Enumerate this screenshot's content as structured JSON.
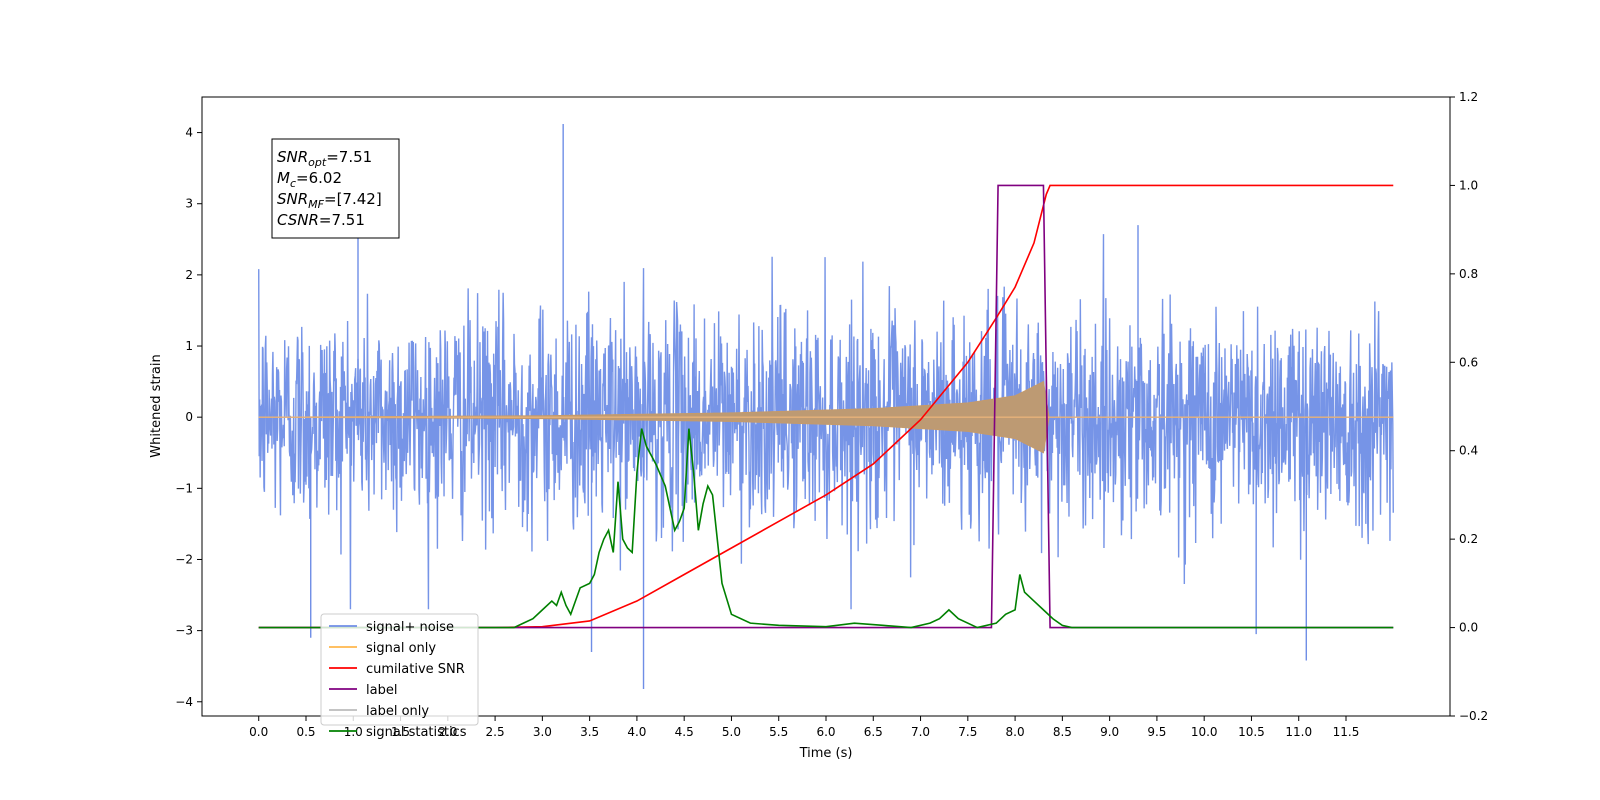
{
  "chart_data": {
    "type": "line",
    "title": "",
    "xlabel": "Time (s)",
    "ylabel": "Whitened strain",
    "xlim": [
      -0.6,
      12.6
    ],
    "ylim": [
      -4.2,
      4.5
    ],
    "y2lim": [
      -0.2,
      1.2
    ],
    "x_ticks": [
      0.0,
      0.5,
      1.0,
      1.5,
      2.0,
      2.5,
      3.0,
      3.5,
      4.0,
      4.5,
      5.0,
      5.5,
      6.0,
      6.5,
      7.0,
      7.5,
      8.0,
      8.5,
      9.0,
      9.5,
      10.0,
      10.5,
      11.0,
      11.5
    ],
    "x_tick_labels": [
      "0.0",
      "0.5",
      "1.0",
      "1.5",
      "2.0",
      "2.5",
      "3.0",
      "3.5",
      "4.0",
      "4.5",
      "5.0",
      "5.5",
      "6.0",
      "6.5",
      "7.0",
      "7.5",
      "8.0",
      "8.5",
      "9.0",
      "9.5",
      "10.0",
      "10.5",
      "11.0",
      "11.5"
    ],
    "y_ticks": [
      4,
      3,
      2,
      1,
      0,
      -1,
      -2,
      -3,
      -4
    ],
    "y_tick_labels": [
      "4",
      "3",
      "2",
      "1",
      "0",
      "−1",
      "−2",
      "−3",
      "−4"
    ],
    "y2_ticks": [
      1.2,
      1.0,
      0.8,
      0.6,
      0.4,
      0.2,
      0.0,
      -0.2
    ],
    "y2_tick_labels": [
      "1.2",
      "1.0",
      "0.8",
      "0.6",
      "0.4",
      "0.2",
      "0.0",
      "−0.2"
    ],
    "grid": false,
    "legend_position": "lower-left",
    "series": [
      {
        "name": "signal+ noise",
        "axis": "left",
        "color": "#6f8ee6",
        "kind": "noise",
        "x_range": [
          0.0,
          12.0
        ],
        "sigma": 0.75,
        "peaks": [
          [
            0.55,
            -3.1
          ],
          [
            1.05,
            2.7
          ],
          [
            3.22,
            4.12
          ],
          [
            3.52,
            -3.3
          ],
          [
            4.07,
            -3.82
          ],
          [
            11.08,
            -3.42
          ],
          [
            9.3,
            2.7
          ],
          [
            10.55,
            -3.05
          ]
        ]
      },
      {
        "name": "signal only",
        "axis": "left",
        "color": "#ffb74d",
        "kind": "chirp",
        "x_range": [
          0.0,
          12.0
        ],
        "merger_time": 8.35,
        "envelope": [
          [
            0.0,
            0.0
          ],
          [
            3.0,
            0.02
          ],
          [
            5.0,
            0.06
          ],
          [
            6.5,
            0.12
          ],
          [
            7.5,
            0.2
          ],
          [
            8.0,
            0.3
          ],
          [
            8.3,
            0.5
          ],
          [
            8.36,
            0.0
          ],
          [
            12.0,
            0.0
          ]
        ]
      },
      {
        "name": "cumilative SNR",
        "axis": "right",
        "color": "#ff0000",
        "x": [
          0.0,
          2.5,
          3.0,
          3.5,
          4.0,
          4.5,
          5.0,
          5.5,
          6.0,
          6.5,
          7.0,
          7.5,
          7.8,
          8.0,
          8.2,
          8.33,
          8.37,
          12.0
        ],
        "values": [
          0.0,
          0.0,
          0.002,
          0.015,
          0.06,
          0.12,
          0.18,
          0.24,
          0.3,
          0.37,
          0.47,
          0.6,
          0.7,
          0.77,
          0.87,
          0.98,
          1.0,
          1.0
        ]
      },
      {
        "name": "label",
        "axis": "right",
        "color": "#800080",
        "x": [
          0.0,
          7.75,
          7.82,
          8.3,
          8.37,
          12.0
        ],
        "values": [
          0.0,
          0.0,
          1.0,
          1.0,
          0.0,
          0.0
        ]
      },
      {
        "name": "label only",
        "axis": "right",
        "color": "#dddddd",
        "x": [],
        "values": []
      },
      {
        "name": "signal statistics",
        "axis": "right",
        "color": "#008000",
        "x": [
          0.0,
          2.7,
          2.8,
          2.9,
          3.0,
          3.1,
          3.15,
          3.2,
          3.25,
          3.3,
          3.35,
          3.4,
          3.5,
          3.55,
          3.6,
          3.65,
          3.7,
          3.75,
          3.8,
          3.85,
          3.9,
          3.95,
          4.0,
          4.05,
          4.1,
          4.2,
          4.3,
          4.4,
          4.45,
          4.5,
          4.55,
          4.6,
          4.65,
          4.7,
          4.75,
          4.8,
          4.85,
          4.9,
          5.0,
          5.2,
          5.5,
          6.0,
          6.3,
          6.6,
          6.9,
          7.1,
          7.2,
          7.3,
          7.4,
          7.6,
          7.8,
          7.9,
          8.0,
          8.05,
          8.1,
          8.2,
          8.3,
          8.4,
          8.5,
          8.6,
          12.0
        ],
        "values": [
          0.0,
          0.0,
          0.01,
          0.02,
          0.04,
          0.06,
          0.05,
          0.08,
          0.05,
          0.03,
          0.06,
          0.09,
          0.1,
          0.12,
          0.17,
          0.2,
          0.22,
          0.17,
          0.33,
          0.2,
          0.18,
          0.17,
          0.35,
          0.45,
          0.41,
          0.37,
          0.32,
          0.22,
          0.24,
          0.27,
          0.45,
          0.35,
          0.22,
          0.28,
          0.32,
          0.3,
          0.2,
          0.1,
          0.03,
          0.01,
          0.005,
          0.002,
          0.01,
          0.005,
          0.0,
          0.01,
          0.02,
          0.04,
          0.02,
          0.0,
          0.01,
          0.03,
          0.04,
          0.12,
          0.08,
          0.06,
          0.04,
          0.02,
          0.005,
          0.0,
          0.0
        ]
      }
    ],
    "annotation": {
      "lines": [
        {
          "var": "SNR",
          "sub": "opt",
          "value": "=7.51"
        },
        {
          "var": "M",
          "sub": "c",
          "value": "=6.02"
        },
        {
          "var": "SNR",
          "sub": "MF",
          "value": "=[7.42]"
        },
        {
          "var": "CSNR",
          "sub": "",
          "value": "=7.51"
        }
      ]
    }
  }
}
